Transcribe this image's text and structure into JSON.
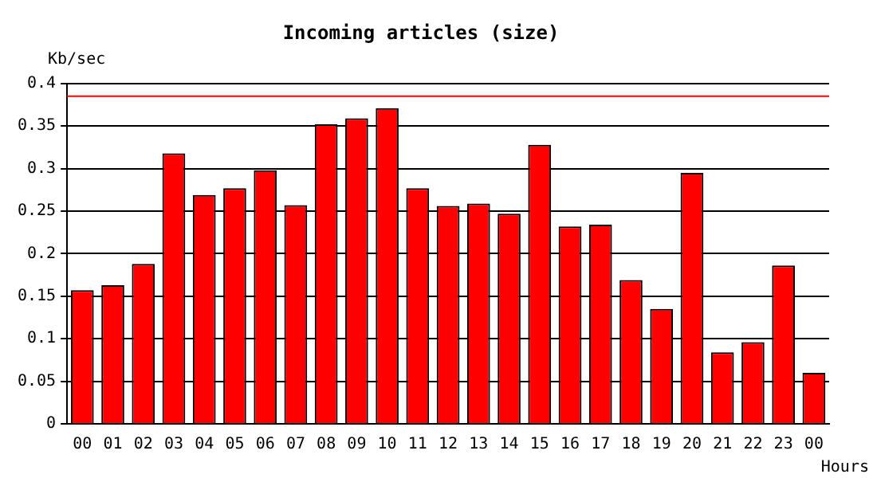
{
  "chart_data": {
    "type": "bar",
    "title": "Incoming articles (size)",
    "xlabel": "Hours",
    "ylabel": "Kb/sec",
    "categories": [
      "00",
      "01",
      "02",
      "03",
      "04",
      "05",
      "06",
      "07",
      "08",
      "09",
      "10",
      "11",
      "12",
      "13",
      "14",
      "15",
      "16",
      "17",
      "18",
      "19",
      "20",
      "21",
      "22",
      "23",
      "00"
    ],
    "values": [
      0.157,
      0.163,
      0.188,
      0.318,
      0.269,
      0.277,
      0.298,
      0.257,
      0.352,
      0.359,
      0.371,
      0.277,
      0.256,
      0.259,
      0.247,
      0.328,
      0.232,
      0.234,
      0.169,
      0.135,
      0.295,
      0.084,
      0.096,
      0.186,
      0.06
    ],
    "color": "#ff0000",
    "ylim": [
      0,
      0.4
    ],
    "yticks": [
      0,
      0.05,
      0.1,
      0.15,
      0.2,
      0.25,
      0.3,
      0.35,
      0.4
    ],
    "ref_lines": [
      {
        "axis": "y",
        "value": 0.385,
        "color": "#ff0000"
      }
    ],
    "grid": "y",
    "legend": false
  }
}
